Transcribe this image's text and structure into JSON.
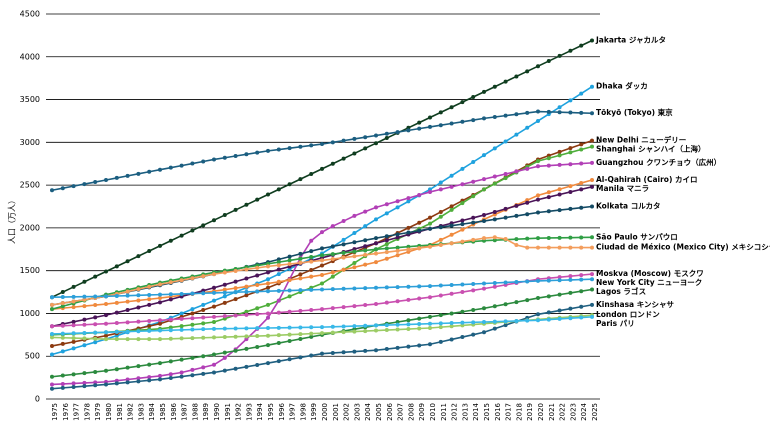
{
  "chart_data": {
    "type": "line",
    "y_label": "人口（万人）",
    "categories": [
      "1975",
      "1976",
      "1977",
      "1978",
      "1979",
      "1980",
      "1981",
      "1982",
      "1983",
      "1984",
      "1985",
      "1986",
      "1987",
      "1988",
      "1989",
      "1990",
      "1991",
      "1992",
      "1993",
      "1994",
      "1995",
      "1996",
      "1997",
      "1998",
      "1999",
      "2000",
      "2001",
      "2002",
      "2003",
      "2004",
      "2005",
      "2006",
      "2007",
      "2008",
      "2009",
      "2010",
      "2011",
      "2012",
      "2013",
      "2014",
      "2015",
      "2016",
      "2017",
      "2018",
      "2019",
      "2020",
      "2021",
      "2022",
      "2023",
      "2024",
      "2025"
    ],
    "ylim": [
      0,
      4500
    ],
    "yticks": [
      0,
      500,
      1000,
      1500,
      2000,
      2500,
      3000,
      3500,
      4000,
      4500
    ],
    "grid": true,
    "series": [
      {
        "name": "Jakarta ジャカルタ",
        "color": "#0f3d1f",
        "values": [
          1190,
          1250,
          1310,
          1370,
          1430,
          1490,
          1550,
          1610,
          1670,
          1730,
          1790,
          1850,
          1910,
          1970,
          2030,
          2090,
          2150,
          2210,
          2270,
          2330,
          2390,
          2450,
          2510,
          2570,
          2630,
          2690,
          2750,
          2810,
          2870,
          2930,
          2990,
          3050,
          3110,
          3170,
          3230,
          3290,
          3350,
          3410,
          3470,
          3530,
          3590,
          3650,
          3710,
          3770,
          3830,
          3890,
          3950,
          4010,
          4070,
          4130,
          4190
        ]
      },
      {
        "name": "Dhaka ダッカ",
        "color": "#1fa2de",
        "values": [
          520,
          556,
          592,
          628,
          664,
          700,
          740,
          780,
          820,
          860,
          900,
          950,
          1000,
          1050,
          1100,
          1150,
          1200,
          1250,
          1300,
          1350,
          1400,
          1460,
          1520,
          1580,
          1640,
          1700,
          1780,
          1860,
          1940,
          2020,
          2100,
          2170,
          2240,
          2310,
          2380,
          2450,
          2530,
          2610,
          2690,
          2770,
          2850,
          2930,
          3010,
          3090,
          3170,
          3250,
          3330,
          3410,
          3490,
          3570,
          3650
        ]
      },
      {
        "name": "Tōkyō (Tokyo) 東京",
        "color": "#1b5e80",
        "values": [
          2440,
          2464,
          2488,
          2512,
          2536,
          2560,
          2584,
          2608,
          2632,
          2656,
          2680,
          2704,
          2728,
          2752,
          2776,
          2800,
          2820,
          2840,
          2860,
          2880,
          2900,
          2916,
          2932,
          2948,
          2964,
          2980,
          3000,
          3020,
          3040,
          3060,
          3080,
          3100,
          3120,
          3140,
          3160,
          3180,
          3200,
          3220,
          3240,
          3260,
          3280,
          3296,
          3312,
          3328,
          3344,
          3360,
          3356,
          3352,
          3348,
          3344,
          3340
        ]
      },
      {
        "name": "New Delhi ニューデリー",
        "color": "#8c3a10",
        "values": [
          620,
          644,
          668,
          692,
          716,
          740,
          768,
          796,
          824,
          852,
          880,
          920,
          960,
          1000,
          1040,
          1080,
          1124,
          1168,
          1212,
          1256,
          1300,
          1352,
          1404,
          1456,
          1508,
          1560,
          1612,
          1664,
          1716,
          1768,
          1820,
          1880,
          1940,
          2000,
          2060,
          2120,
          2186,
          2252,
          2318,
          2384,
          2450,
          2520,
          2590,
          2660,
          2730,
          2800,
          2844,
          2888,
          2932,
          2976,
          3020
        ]
      },
      {
        "name": "Shanghai シャンハイ（上海）",
        "color": "#4fae3b",
        "values": [
          750,
          756,
          762,
          768,
          774,
          780,
          788,
          796,
          804,
          812,
          820,
          836,
          852,
          868,
          884,
          900,
          940,
          980,
          1020,
          1060,
          1100,
          1150,
          1200,
          1250,
          1300,
          1350,
          1430,
          1510,
          1590,
          1670,
          1750,
          1810,
          1870,
          1930,
          1990,
          2050,
          2130,
          2210,
          2290,
          2370,
          2450,
          2516,
          2582,
          2648,
          2714,
          2780,
          2814,
          2848,
          2882,
          2916,
          2950
        ]
      },
      {
        "name": "Guangzhou クワンチョウ（広州）",
        "color": "#b23fb6",
        "values": [
          170,
          176,
          182,
          188,
          194,
          200,
          214,
          228,
          242,
          256,
          270,
          290,
          310,
          340,
          370,
          400,
          480,
          580,
          700,
          820,
          950,
          1150,
          1400,
          1650,
          1850,
          1950,
          2020,
          2080,
          2140,
          2190,
          2240,
          2276,
          2312,
          2348,
          2384,
          2420,
          2450,
          2480,
          2510,
          2540,
          2570,
          2600,
          2630,
          2660,
          2690,
          2720,
          2728,
          2736,
          2744,
          2752,
          2760
        ]
      },
      {
        "name": "Al-Qahirah (Cairo) カイロ",
        "color": "#f08a3e",
        "values": [
          1050,
          1062,
          1074,
          1086,
          1098,
          1110,
          1124,
          1138,
          1152,
          1166,
          1180,
          1196,
          1212,
          1228,
          1244,
          1260,
          1278,
          1296,
          1314,
          1332,
          1350,
          1370,
          1390,
          1410,
          1430,
          1450,
          1480,
          1510,
          1540,
          1570,
          1600,
          1640,
          1680,
          1720,
          1760,
          1800,
          1860,
          1920,
          1980,
          2040,
          2100,
          2156,
          2212,
          2268,
          2324,
          2380,
          2416,
          2452,
          2488,
          2524,
          2560
        ]
      },
      {
        "name": "Manila マニラ",
        "color": "#4a1458",
        "values": [
          850,
          876,
          902,
          928,
          954,
          980,
          1010,
          1040,
          1070,
          1100,
          1130,
          1164,
          1198,
          1232,
          1266,
          1300,
          1336,
          1372,
          1408,
          1444,
          1480,
          1514,
          1548,
          1582,
          1616,
          1650,
          1684,
          1718,
          1752,
          1786,
          1820,
          1854,
          1888,
          1922,
          1956,
          1990,
          2022,
          2054,
          2086,
          2118,
          2150,
          2186,
          2222,
          2258,
          2294,
          2330,
          2360,
          2390,
          2420,
          2450,
          2480
        ]
      },
      {
        "name": "Kolkata コルカタ",
        "color": "#134a64",
        "values": [
          1100,
          1120,
          1140,
          1160,
          1180,
          1200,
          1226,
          1252,
          1278,
          1304,
          1330,
          1356,
          1382,
          1408,
          1434,
          1460,
          1488,
          1516,
          1544,
          1572,
          1600,
          1632,
          1664,
          1696,
          1728,
          1760,
          1784,
          1808,
          1832,
          1856,
          1880,
          1902,
          1924,
          1946,
          1968,
          1990,
          2008,
          2026,
          2044,
          2062,
          2080,
          2100,
          2120,
          2140,
          2160,
          2180,
          2194,
          2208,
          2222,
          2236,
          2250
        ]
      },
      {
        "name": "São Paulo サンパウロ",
        "color": "#2f9e44",
        "values": [
          1050,
          1084,
          1118,
          1152,
          1186,
          1220,
          1248,
          1276,
          1304,
          1332,
          1360,
          1384,
          1408,
          1432,
          1456,
          1480,
          1500,
          1520,
          1540,
          1560,
          1580,
          1600,
          1620,
          1640,
          1660,
          1680,
          1694,
          1708,
          1722,
          1736,
          1750,
          1760,
          1770,
          1780,
          1790,
          1800,
          1810,
          1820,
          1830,
          1840,
          1850,
          1856,
          1862,
          1868,
          1874,
          1880,
          1882,
          1884,
          1886,
          1888,
          1890
        ]
      },
      {
        "name": "Ciudad de México (Mexico City) メキシコシティ",
        "color": "#f39d5c",
        "values": [
          1100,
          1120,
          1140,
          1160,
          1180,
          1200,
          1228,
          1256,
          1284,
          1312,
          1340,
          1364,
          1388,
          1412,
          1436,
          1460,
          1478,
          1496,
          1514,
          1532,
          1550,
          1564,
          1578,
          1592,
          1606,
          1620,
          1636,
          1652,
          1668,
          1684,
          1700,
          1716,
          1732,
          1748,
          1764,
          1780,
          1800,
          1820,
          1840,
          1860,
          1880,
          1890,
          1870,
          1800,
          1770,
          1770,
          1770,
          1770,
          1770,
          1770,
          1770
        ]
      },
      {
        "name": "Moskva (Moscow) モスクワ",
        "color": "#c94fb0",
        "values": [
          850,
          856,
          862,
          868,
          874,
          880,
          888,
          896,
          904,
          912,
          920,
          928,
          936,
          944,
          952,
          960,
          968,
          976,
          984,
          992,
          1000,
          1010,
          1020,
          1030,
          1040,
          1050,
          1062,
          1074,
          1086,
          1098,
          1110,
          1126,
          1142,
          1158,
          1174,
          1190,
          1210,
          1230,
          1250,
          1270,
          1290,
          1312,
          1334,
          1356,
          1378,
          1400,
          1412,
          1424,
          1436,
          1448,
          1460
        ]
      },
      {
        "name": "New York City ニューヨーク",
        "color": "#2c9fd9",
        "values": [
          1190,
          1192,
          1194,
          1196,
          1198,
          1200,
          1204,
          1208,
          1212,
          1216,
          1220,
          1224,
          1228,
          1232,
          1236,
          1240,
          1244,
          1248,
          1252,
          1256,
          1260,
          1264,
          1268,
          1272,
          1276,
          1280,
          1284,
          1288,
          1292,
          1296,
          1300,
          1304,
          1308,
          1312,
          1316,
          1320,
          1326,
          1332,
          1338,
          1344,
          1350,
          1356,
          1362,
          1368,
          1374,
          1380,
          1384,
          1388,
          1392,
          1396,
          1400
        ]
      },
      {
        "name": "Lagos ラゴス",
        "color": "#2b8a3e",
        "values": [
          260,
          274,
          288,
          302,
          316,
          330,
          348,
          366,
          384,
          402,
          420,
          440,
          460,
          480,
          500,
          520,
          542,
          564,
          586,
          608,
          630,
          654,
          678,
          702,
          726,
          750,
          772,
          794,
          816,
          838,
          860,
          880,
          900,
          920,
          940,
          960,
          980,
          1000,
          1020,
          1040,
          1060,
          1084,
          1108,
          1132,
          1156,
          1180,
          1200,
          1220,
          1240,
          1260,
          1280
        ]
      },
      {
        "name": "Kinshasa キンシャサ",
        "color": "#1f5f80",
        "values": [
          120,
          130,
          140,
          150,
          160,
          170,
          182,
          194,
          206,
          218,
          230,
          246,
          262,
          278,
          294,
          310,
          332,
          354,
          376,
          398,
          420,
          442,
          464,
          486,
          508,
          530,
          538,
          546,
          554,
          562,
          570,
          584,
          598,
          612,
          626,
          640,
          668,
          696,
          724,
          752,
          780,
          822,
          864,
          906,
          948,
          990,
          1012,
          1034,
          1056,
          1078,
          1100
        ]
      },
      {
        "name": "London ロンドン",
        "color": "#9ccc65",
        "values": [
          720,
          716,
          712,
          708,
          704,
          700,
          700,
          700,
          700,
          700,
          700,
          704,
          708,
          712,
          716,
          720,
          724,
          728,
          732,
          736,
          740,
          746,
          752,
          758,
          764,
          770,
          776,
          782,
          788,
          794,
          800,
          806,
          812,
          818,
          824,
          830,
          840,
          850,
          860,
          870,
          880,
          890,
          900,
          910,
          920,
          930,
          940,
          950,
          960,
          970,
          980
        ]
      },
      {
        "name": "Paris パリ",
        "color": "#38b8e8",
        "values": [
          760,
          764,
          768,
          772,
          776,
          780,
          784,
          788,
          792,
          796,
          800,
          804,
          808,
          812,
          816,
          820,
          822,
          824,
          826,
          828,
          830,
          832,
          834,
          836,
          838,
          840,
          844,
          848,
          852,
          856,
          860,
          864,
          868,
          872,
          876,
          880,
          884,
          888,
          892,
          896,
          900,
          904,
          908,
          912,
          916,
          920,
          928,
          936,
          944,
          952,
          960
        ]
      }
    ]
  }
}
